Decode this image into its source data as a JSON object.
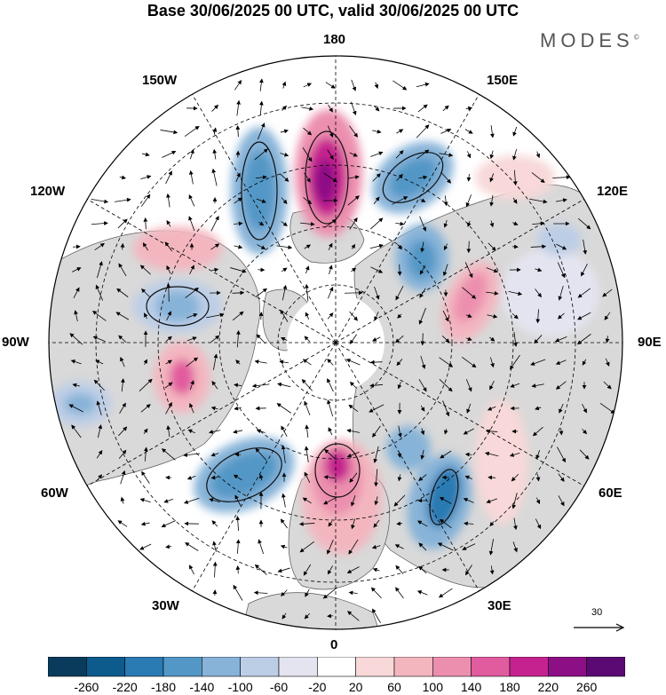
{
  "title": "Base 30/06/2025 00 UTC, valid 30/06/2025 00 UTC",
  "brand": {
    "name": "MODES",
    "mark": "©"
  },
  "longitude_labels": [
    "180",
    "150E",
    "120E",
    "90E",
    "60E",
    "30E",
    "0",
    "30W",
    "60W",
    "90W",
    "120W",
    "150W"
  ],
  "reference_vector": {
    "value": "30"
  },
  "colorbar": {
    "ticks": [
      "-260",
      "-220",
      "-180",
      "-140",
      "-100",
      "-60",
      "-20",
      "20",
      "60",
      "100",
      "140",
      "180",
      "220",
      "260"
    ],
    "colors": [
      "#0a3b5c",
      "#0d5a8c",
      "#2a7ab3",
      "#5397c6",
      "#87b3d8",
      "#bccde6",
      "#e4e4f0",
      "#ffffff",
      "#f8d8d8",
      "#f3b6bf",
      "#ec8fae",
      "#e15b9f",
      "#c5228f",
      "#8d0f86",
      "#5a0a72"
    ]
  },
  "colors": {
    "land": "#d9d9d9",
    "coast": "#555555",
    "arrow": "#000000"
  }
}
